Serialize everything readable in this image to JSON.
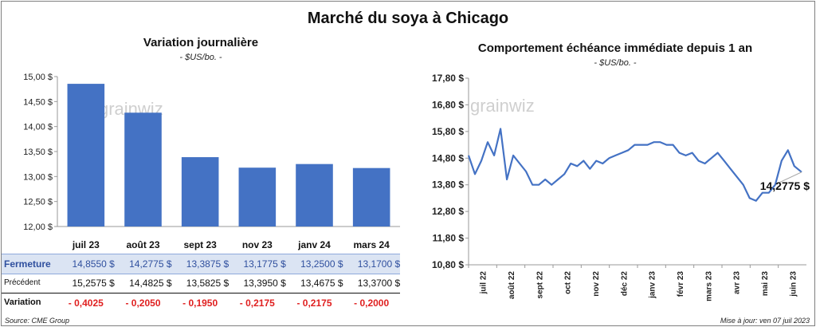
{
  "main_title": "Marché du soya à Chicago",
  "source": "Source: CME Group",
  "updated": "Mise à jour: ven 07 juil 2023",
  "watermark": "grainwiz",
  "colors": {
    "bar": "#4472c4",
    "line": "#4472c4",
    "variation": "#e02020",
    "highlight_row": "#dbe4f3"
  },
  "chart_data": [
    {
      "type": "bar",
      "title": "Variation journalière",
      "subtitle": "- $US/bo. -",
      "categories": [
        "juil 23",
        "août 23",
        "sept 23",
        "nov 23",
        "janv 24",
        "mars 24"
      ],
      "values": [
        14.855,
        14.2775,
        13.3875,
        13.1775,
        13.25,
        13.17
      ],
      "ylim": [
        12.0,
        15.0
      ],
      "yticks": [
        "15,00 $",
        "14,50 $",
        "14,00 $",
        "13,50 $",
        "13,00 $",
        "12,50 $",
        "12,00 $"
      ],
      "grid": false,
      "table": {
        "rows": [
          {
            "label": "Fermeture",
            "values": [
              "14,8550 $",
              "14,2775 $",
              "13,3875 $",
              "13,1775 $",
              "13,2500 $",
              "13,1700 $"
            ]
          },
          {
            "label": "Précédent",
            "values": [
              "15,2575 $",
              "14,4825 $",
              "13,5825 $",
              "13,3950 $",
              "13,4675 $",
              "13,3700 $"
            ]
          },
          {
            "label": "Variation",
            "values": [
              "- 0,4025",
              "- 0,2050",
              "- 0,1950",
              "- 0,2175",
              "- 0,2175",
              "- 0,2000"
            ]
          }
        ]
      }
    },
    {
      "type": "line",
      "title": "Comportement échéance immédiate depuis 1 an",
      "subtitle": "- $US/bo. -",
      "xticks": [
        "juil 22",
        "août 22",
        "sept 22",
        "oct 22",
        "nov 22",
        "déc 22",
        "janv 23",
        "févr 23",
        "mars 23",
        "avr 23",
        "mai 23",
        "juin 23"
      ],
      "yticks": [
        "17,80 $",
        "16,80 $",
        "15,80 $",
        "14,80 $",
        "13,80 $",
        "12,80 $",
        "11,80 $",
        "10,80 $"
      ],
      "ylim": [
        10.8,
        17.8
      ],
      "grid": false,
      "last_value_label": "14,2775 $",
      "x": [
        "2022-07-07",
        "2022-07-14",
        "2022-07-21",
        "2022-07-28",
        "2022-08-04",
        "2022-08-11",
        "2022-08-18",
        "2022-08-25",
        "2022-09-01",
        "2022-09-08",
        "2022-09-15",
        "2022-09-22",
        "2022-09-29",
        "2022-10-06",
        "2022-10-13",
        "2022-10-20",
        "2022-10-27",
        "2022-11-03",
        "2022-11-10",
        "2022-11-17",
        "2022-11-24",
        "2022-12-01",
        "2022-12-08",
        "2022-12-15",
        "2022-12-22",
        "2022-12-29",
        "2023-01-05",
        "2023-01-12",
        "2023-01-19",
        "2023-01-26",
        "2023-02-02",
        "2023-02-09",
        "2023-02-16",
        "2023-02-23",
        "2023-03-02",
        "2023-03-09",
        "2023-03-16",
        "2023-03-23",
        "2023-03-30",
        "2023-04-06",
        "2023-04-13",
        "2023-04-20",
        "2023-04-27",
        "2023-05-04",
        "2023-05-11",
        "2023-05-18",
        "2023-05-25",
        "2023-06-01",
        "2023-06-08",
        "2023-06-15",
        "2023-06-22",
        "2023-06-29",
        "2023-07-07"
      ],
      "values": [
        14.9,
        14.2,
        14.7,
        15.4,
        14.9,
        15.9,
        14.0,
        14.9,
        14.6,
        14.3,
        13.8,
        13.8,
        14.0,
        13.8,
        14.0,
        14.2,
        14.6,
        14.5,
        14.7,
        14.4,
        14.7,
        14.6,
        14.8,
        14.9,
        15.0,
        15.1,
        15.3,
        15.3,
        15.3,
        15.4,
        15.4,
        15.3,
        15.3,
        15.0,
        14.9,
        15.0,
        14.7,
        14.6,
        14.8,
        15.0,
        14.7,
        14.4,
        14.1,
        13.8,
        13.3,
        13.2,
        13.5,
        13.5,
        13.8,
        14.7,
        15.1,
        14.5,
        14.2775
      ]
    }
  ]
}
